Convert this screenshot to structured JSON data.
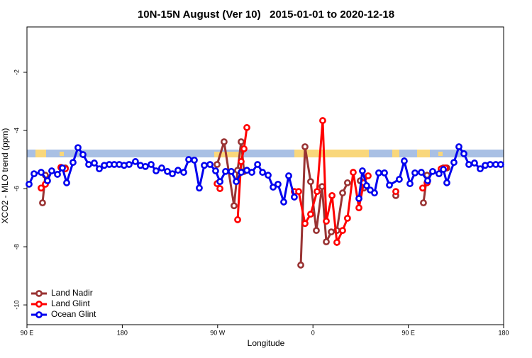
{
  "chart_data": {
    "type": "line",
    "title": "10N-15N August (Ver 10)   2015-01-01 to 2020-12-18",
    "xlabel": "Longitude",
    "ylabel": "XCO2 - MLO trend (ppm)",
    "xlim": [
      90,
      540
    ],
    "xticks": [
      {
        "value": 90,
        "label": "90 E"
      },
      180,
      {
        "value": 270,
        "label": "90 W"
      },
      {
        "value": 360,
        "label": "0"
      },
      {
        "value": 450,
        "label": "90 E"
      },
      {
        "value": 540,
        "label": "180"
      }
    ],
    "ylim": [
      -10.68,
      -0.44
    ],
    "yticks": [
      -2,
      -4,
      -6,
      -8,
      -10
    ],
    "grid": false,
    "legend": "lower left",
    "series": [
      {
        "name": "Land Nadir",
        "color": "#993333",
        "x": [
          104.7,
          107.4,
          null,
          122.1,
          126.2,
          null,
          269.5,
          276.1,
          285.5,
          288.9,
          292.2,
          294.9,
          null,
          348.5,
          352.5,
          357.8,
          363.2,
          368.6,
          372.6,
          377.3,
          382.6,
          388,
          392.6,
          null,
          404.7,
          408,
          null,
          438.2,
          null,
          464.3,
          467.7,
          null,
          483.1,
          486.4
        ],
        "values": [
          -6.49,
          -5.54,
          null,
          -5.27,
          -5.29,
          null,
          -5.17,
          -4.39,
          -6.59,
          -5.37,
          -4.39,
          -5.41,
          null,
          -8.63,
          -4.56,
          -5.76,
          -7.44,
          -5.93,
          -7.83,
          -7.49,
          -7.44,
          -6.15,
          -5.8,
          null,
          -5.73,
          -5.98,
          null,
          -6.24,
          null,
          -6.49,
          -5.54,
          null,
          -5.29,
          -5.29
        ]
      },
      {
        "name": "Land Glint",
        "color": "#ff0000",
        "x": [
          103.4,
          107.4,
          null,
          122.1,
          126.2,
          null,
          269.5,
          272.2,
          null,
          288.9,
          292.2,
          294.9,
          297.6,
          null,
          342.4,
          346.5,
          352.5,
          357.8,
          363.9,
          369.2,
          372.6,
          378,
          382.6,
          388,
          392.6,
          398,
          403.4,
          408,
          412.1,
          null,
          438.2,
          null,
          463.6,
          467.7,
          null,
          481,
          485
        ],
        "values": [
          -5.98,
          -5.85,
          null,
          -5.27,
          -5.32,
          null,
          -5.83,
          -6.0,
          null,
          -7.07,
          -5.07,
          -4.63,
          -3.9,
          null,
          -6.1,
          -6.1,
          -7.2,
          -6.88,
          -6.1,
          -3.66,
          -7.12,
          -6.24,
          -7.85,
          -7.44,
          -7.02,
          -5.44,
          -6.66,
          -5.8,
          -5.56,
          null,
          -6.1,
          null,
          -5.98,
          -5.8,
          null,
          -5.32,
          -5.29
        ]
      },
      {
        "name": "Ocean Glint",
        "color": "#0000ee",
        "x": [
          92,
          96.7,
          103.4,
          109.4,
          113.4,
          118.8,
          123.5,
          127.5,
          133.5,
          138.2,
          142.9,
          148.3,
          153.6,
          158.3,
          163,
          167.7,
          172.4,
          177.1,
          181.7,
          186.4,
          192.4,
          197.1,
          201.8,
          207.2,
          211.9,
          217.2,
          222.6,
          227.3,
          232.6,
          238,
          242.7,
          248,
          252.7,
          257.4,
          262.8,
          268.1,
          272.2,
          277.5,
          282.9,
          287.6,
          292.3,
          297.6,
          302.3,
          307.7,
          312.4,
          317.7,
          322.4,
          327,
          332.4,
          337.1,
          342.4,
          null,
          403.4,
          406.7,
          410.7,
          414.1,
          418.1,
          422.1,
          427.5,
          432.2,
          441.5,
          446.2,
          451.6,
          456.3,
          462.3,
          468.3,
          473,
          479,
          483.1,
          486.4,
          493.1,
          497.8,
          502.5,
          507.2,
          512.5,
          517.9,
          522.6,
          527.3,
          532.6,
          537.3
        ],
        "values": [
          -5.85,
          -5.49,
          -5.44,
          -5.73,
          -5.39,
          -5.51,
          -5.29,
          -5.8,
          -5.1,
          -4.59,
          -4.83,
          -5.17,
          -5.12,
          -5.32,
          -5.2,
          -5.17,
          -5.17,
          -5.17,
          -5.2,
          -5.17,
          -5.07,
          -5.2,
          -5.24,
          -5.17,
          -5.39,
          -5.29,
          -5.41,
          -5.49,
          -5.37,
          -5.44,
          -5.0,
          -5.02,
          -5.98,
          -5.2,
          -5.17,
          -5.39,
          -5.76,
          -5.41,
          -5.41,
          -5.76,
          -5.44,
          -5.37,
          -5.44,
          -5.17,
          -5.44,
          -5.54,
          -5.95,
          -5.85,
          -6.46,
          -5.56,
          -6.29,
          null,
          -6.34,
          -5.39,
          -5.9,
          -6.05,
          -6.15,
          -5.46,
          -5.46,
          -5.88,
          -5.68,
          -5.05,
          -5.83,
          -5.46,
          -5.44,
          -5.73,
          -5.41,
          -5.49,
          -5.34,
          -5.8,
          -5.1,
          -4.56,
          -4.8,
          -5.17,
          -5.12,
          -5.32,
          -5.2,
          -5.17,
          -5.17,
          -5.17
        ]
      }
    ]
  }
}
